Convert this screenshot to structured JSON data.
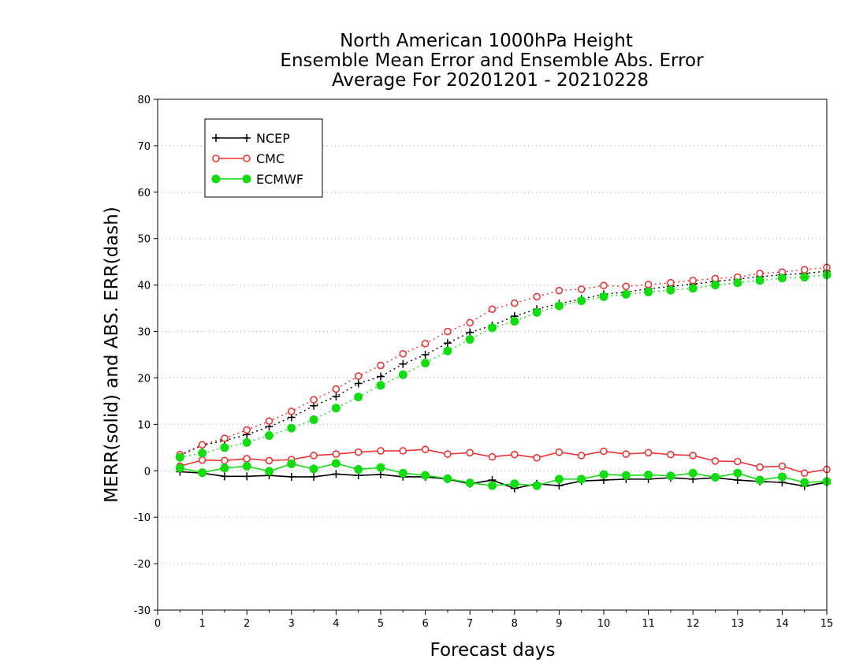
{
  "chart_data": {
    "type": "line",
    "title_lines": [
      "North American 1000hPa Height",
      "Ensemble Mean Error and Ensemble Abs. Error",
      "Average For 20201201 - 20210228"
    ],
    "xlabel": "Forecast days",
    "ylabel": "MERR(solid) and ABS. ERR(dash)",
    "xlim": [
      0,
      15
    ],
    "ylim": [
      -30,
      80
    ],
    "x_ticks": [
      "0",
      "1",
      "2",
      "3",
      "4",
      "5",
      "6",
      "7",
      "8",
      "9",
      "10",
      "11",
      "12",
      "13",
      "14",
      "15"
    ],
    "y_ticks": [
      "-30",
      "-20",
      "-10",
      "0",
      "10",
      "20",
      "30",
      "40",
      "50",
      "60",
      "70",
      "80"
    ],
    "grid": "horizontal dotted",
    "legend_position": "top-left",
    "x": [
      0.5,
      1,
      1.5,
      2,
      2.5,
      3,
      3.5,
      4,
      4.5,
      5,
      5.5,
      6,
      6.5,
      7,
      7.5,
      8,
      8.5,
      9,
      9.5,
      10,
      10.5,
      11,
      11.5,
      12,
      12.5,
      13,
      13.5,
      14,
      14.5,
      15
    ],
    "series": [
      {
        "name": "NCEP",
        "color": "#000000",
        "marker": "plus",
        "merr": [
          -0.2,
          -0.5,
          -1.2,
          -1.2,
          -1.0,
          -1.3,
          -1.3,
          -0.7,
          -1.0,
          -0.8,
          -1.3,
          -1.3,
          -1.8,
          -2.8,
          -2.0,
          -3.8,
          -2.8,
          -3.2,
          -2.2,
          -2.0,
          -1.8,
          -1.8,
          -1.5,
          -1.8,
          -1.5,
          -2.0,
          -2.3,
          -2.5,
          -3.3,
          -2.5
        ],
        "abs_err": [
          3.3,
          5.5,
          6.5,
          7.8,
          9.5,
          11.5,
          14.0,
          16.0,
          18.8,
          20.3,
          23.0,
          25.0,
          27.5,
          29.8,
          31.3,
          33.3,
          34.8,
          36.0,
          37.0,
          38.0,
          38.5,
          39.2,
          39.7,
          40.2,
          40.8,
          41.3,
          41.8,
          42.2,
          42.5,
          43.0
        ]
      },
      {
        "name": "CMC",
        "color": "#ee3333",
        "marker": "open-circle",
        "merr": [
          1.0,
          2.3,
          2.2,
          2.6,
          2.2,
          2.4,
          3.3,
          3.6,
          4.0,
          4.3,
          4.3,
          4.6,
          3.6,
          3.9,
          3.0,
          3.5,
          2.8,
          4.0,
          3.3,
          4.2,
          3.6,
          3.9,
          3.5,
          3.3,
          2.1,
          2.0,
          0.8,
          1.0,
          -0.5,
          0.3
        ],
        "abs_err": [
          3.5,
          5.6,
          7.0,
          8.8,
          10.7,
          12.8,
          15.3,
          17.6,
          20.4,
          22.7,
          25.2,
          27.4,
          30.0,
          31.9,
          34.8,
          36.1,
          37.5,
          38.8,
          39.1,
          39.9,
          39.7,
          40.1,
          40.5,
          41.0,
          41.4,
          41.7,
          42.5,
          42.8,
          43.3,
          43.8
        ]
      },
      {
        "name": "ECMWF",
        "color": "#11dd11",
        "marker": "filled-circle",
        "merr": [
          0.6,
          -0.4,
          0.6,
          1.0,
          -0.1,
          1.5,
          0.4,
          1.6,
          0.3,
          0.7,
          -0.5,
          -1.0,
          -1.7,
          -2.6,
          -3.2,
          -2.8,
          -3.2,
          -1.8,
          -1.8,
          -0.8,
          -1.0,
          -0.9,
          -1.1,
          -0.5,
          -1.4,
          -0.5,
          -2.0,
          -1.3,
          -2.5,
          -2.3
        ],
        "abs_err": [
          2.9,
          3.8,
          5.0,
          6.1,
          7.6,
          9.2,
          11.0,
          13.5,
          15.9,
          18.4,
          20.7,
          23.2,
          25.8,
          28.3,
          30.8,
          32.2,
          34.1,
          35.5,
          36.6,
          37.5,
          38.0,
          38.5,
          38.9,
          39.3,
          40.0,
          40.5,
          41.0,
          41.5,
          41.7,
          42.2
        ]
      }
    ]
  }
}
